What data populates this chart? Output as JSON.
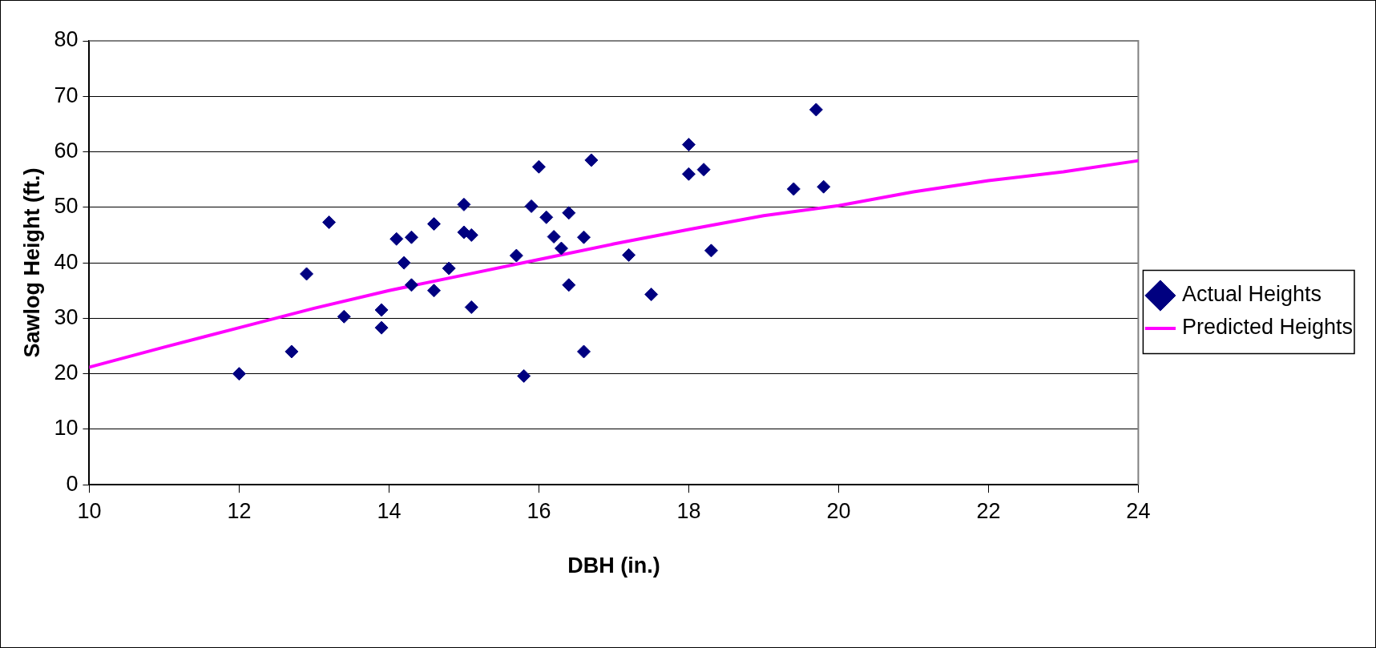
{
  "chart_data": {
    "type": "scatter",
    "xlabel": "DBH (in.)",
    "ylabel": "Sawlog Height (ft.)",
    "xlim": [
      10,
      24
    ],
    "xticks": [
      10,
      12,
      14,
      16,
      18,
      20,
      22,
      24
    ],
    "ylim": [
      0,
      80
    ],
    "yticks": [
      0,
      10,
      20,
      30,
      40,
      50,
      60,
      70,
      80
    ],
    "grid": "y",
    "legend": "right",
    "series": [
      {
        "name": "Actual Heights",
        "marker": "diamond",
        "color": "#000080",
        "x": [
          12,
          12.7,
          12.9,
          13.2,
          13.4,
          13.9,
          13.9,
          14.1,
          14.2,
          14.3,
          14.3,
          14.6,
          14.6,
          14.8,
          15,
          15,
          15.1,
          15.1,
          15.7,
          15.8,
          15.9,
          16,
          16.1,
          16.2,
          16.3,
          16.4,
          16.4,
          16.6,
          16.6,
          16.7,
          17.2,
          17.5,
          18,
          18,
          18.2,
          18.3,
          19.4,
          19.7,
          19.8
        ],
        "values": [
          20,
          24,
          38,
          47.3,
          30.3,
          31.5,
          28.3,
          44.3,
          40,
          36,
          44.6,
          47,
          35,
          39,
          50.5,
          45.5,
          45,
          32,
          41.3,
          19.6,
          50.2,
          57.3,
          48.2,
          44.7,
          42.6,
          49,
          36,
          44.6,
          24,
          58.5,
          41.4,
          34.3,
          61.3,
          56,
          56.8,
          42.2,
          53.3,
          67.6,
          53.7
        ]
      },
      {
        "name": "Predicted Heights",
        "type": "line",
        "color": "#ff00ff",
        "x": [
          10,
          11,
          12,
          13,
          14,
          15,
          16,
          17,
          18,
          19,
          20,
          21,
          22,
          23,
          24
        ],
        "values": [
          21.2,
          24.8,
          28.3,
          31.8,
          35,
          37.8,
          40.6,
          43.4,
          46,
          48.5,
          50.3,
          52.8,
          54.8,
          56.4,
          58.4
        ]
      }
    ]
  }
}
